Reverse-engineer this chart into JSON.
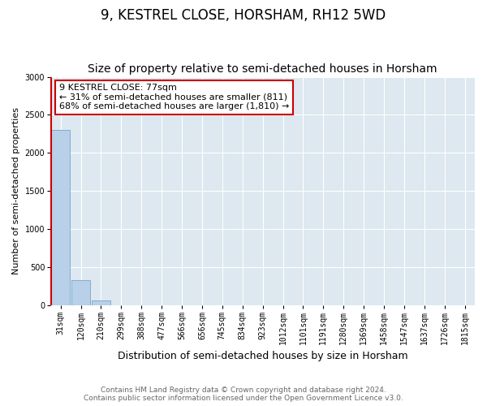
{
  "title": "9, KESTREL CLOSE, HORSHAM, RH12 5WD",
  "subtitle": "Size of property relative to semi-detached houses in Horsham",
  "xlabel": "Distribution of semi-detached houses by size in Horsham",
  "ylabel": "Number of semi-detached properties",
  "categories": [
    "31sqm",
    "120sqm",
    "210sqm",
    "299sqm",
    "388sqm",
    "477sqm",
    "566sqm",
    "656sqm",
    "745sqm",
    "834sqm",
    "923sqm",
    "1012sqm",
    "1101sqm",
    "1191sqm",
    "1280sqm",
    "1369sqm",
    "1458sqm",
    "1547sqm",
    "1637sqm",
    "1726sqm",
    "1815sqm"
  ],
  "values": [
    2300,
    330,
    55,
    0,
    0,
    0,
    0,
    0,
    0,
    0,
    0,
    0,
    0,
    0,
    0,
    0,
    0,
    0,
    0,
    0,
    0
  ],
  "bar_color": "#b8d0e8",
  "bar_edge_color": "#6699cc",
  "red_line_x": -0.1,
  "annotation_title": "9 KESTREL CLOSE: 77sqm",
  "annotation_line1": "← 31% of semi-detached houses are smaller (811)",
  "annotation_line2": "68% of semi-detached houses are larger (1,810) →",
  "annotation_box_color": "#ffffff",
  "annotation_border_color": "#cc0000",
  "ylim": [
    0,
    3000
  ],
  "yticks": [
    0,
    500,
    1000,
    1500,
    2000,
    2500,
    3000
  ],
  "footer_line1": "Contains HM Land Registry data © Crown copyright and database right 2024.",
  "footer_line2": "Contains public sector information licensed under the Open Government Licence v3.0.",
  "background_color": "#ffffff",
  "plot_bg_color": "#dde8f0",
  "grid_color": "#ffffff",
  "title_fontsize": 12,
  "subtitle_fontsize": 10,
  "annotation_fontsize": 8,
  "ylabel_fontsize": 8,
  "xlabel_fontsize": 9,
  "tick_fontsize": 7,
  "footer_fontsize": 6.5,
  "footer_color": "#666666"
}
